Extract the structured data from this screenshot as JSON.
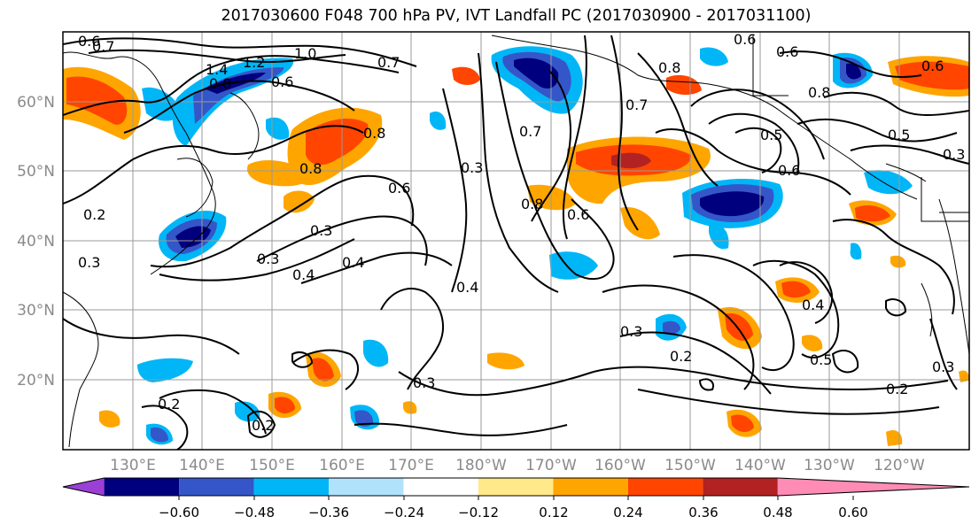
{
  "title": "2017030600 F048 700 hPa PV, IVT Landfall PC (2017030900 - 2017031100)",
  "lon_labels": [
    "130°E",
    "140°E",
    "150°E",
    "160°E",
    "170°E",
    "180°W",
    "170°W",
    "160°W",
    "150°W",
    "140°W",
    "130°W",
    "120°W"
  ],
  "lat_labels": [
    "60°N",
    "50°N",
    "40°N",
    "30°N",
    "20°N"
  ],
  "colorbar": {
    "tick_labels": [
      "−0.60",
      "−0.48",
      "−0.36",
      "−0.24",
      "−0.12",
      "0.12",
      "0.24",
      "0.36",
      "0.48",
      "0.60"
    ],
    "bins": [
      {
        "color": "#9b3fd6"
      },
      {
        "color": "#00007e"
      },
      {
        "color": "#3556c8"
      },
      {
        "color": "#00b6f7"
      },
      {
        "color": "#b1e2fb"
      },
      {
        "color": "#ffffff"
      },
      {
        "color": "#ffe98a"
      },
      {
        "color": "#ffa500"
      },
      {
        "color": "#ff4500"
      },
      {
        "color": "#b22222"
      },
      {
        "color": "#ff8cb4"
      }
    ]
  },
  "contour_labels": [
    "0.6",
    "0.7",
    "1.4",
    "1.2",
    "1.0",
    "0.8",
    "0.6",
    "0.7",
    "0.6",
    "0.6",
    "0.8",
    "0.8",
    "0.6",
    "0.7",
    "0.8",
    "0.6",
    "0.5",
    "0.5",
    "0.6",
    "0.3",
    "0.8",
    "0.7",
    "0.8",
    "0.6",
    "0.3",
    "0.3",
    "0.4",
    "0.4",
    "0.4",
    "0.3",
    "0.2",
    "0.3",
    "0.5",
    "0.4",
    "0.3",
    "0.2",
    "0.2",
    "0.2",
    "0.3",
    "0.2",
    "0.3"
  ]
}
